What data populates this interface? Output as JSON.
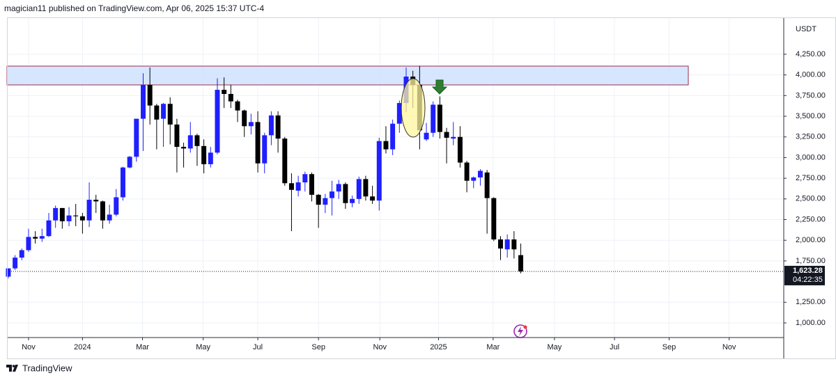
{
  "header": "magician11 published on TradingView.com, Apr 06, 2025 15:37 UTC-4",
  "footer": "TradingView",
  "chart_data": {
    "type": "candlestick",
    "unit": "USDT",
    "up_color": "#1f1fff",
    "down_color": "#000000",
    "grid": true,
    "x": [
      0,
      1,
      2,
      3,
      4,
      5,
      6,
      7,
      8,
      9,
      10,
      11,
      12,
      13,
      14,
      15,
      16,
      17,
      18,
      19,
      20,
      21,
      22,
      23,
      24,
      25,
      26,
      27,
      28,
      29,
      30,
      31,
      32,
      33,
      34,
      35,
      36,
      37,
      38,
      39,
      40,
      41,
      42,
      43,
      44,
      45,
      46,
      47,
      48,
      49,
      50,
      51,
      52,
      53,
      54,
      55,
      56,
      57,
      58,
      59,
      60,
      61,
      62,
      63,
      64,
      65,
      66,
      67,
      68,
      69,
      70,
      71,
      72,
      73,
      74,
      75,
      76
    ],
    "open": [
      1560,
      1660,
      1790,
      1880,
      2040,
      2020,
      2050,
      2240,
      2390,
      2230,
      2300,
      2290,
      2240,
      2490,
      2470,
      2240,
      2310,
      2520,
      2880,
      3010,
      3470,
      3880,
      3630,
      3470,
      3650,
      3400,
      3130,
      3110,
      3270,
      3140,
      2920,
      3060,
      3820,
      3770,
      3680,
      3570,
      3380,
      3430,
      2930,
      3270,
      3510,
      3230,
      2690,
      2600,
      2700,
      2800,
      2550,
      2430,
      2510,
      2590,
      2680,
      2450,
      2500,
      2740,
      2530,
      2480,
      3200,
      3100,
      3410,
      3660,
      3980,
      3880,
      3220,
      3300,
      3640,
      3310,
      3230,
      3250,
      2940,
      2720,
      2760,
      2820,
      2510,
      2010,
      1890,
      2010,
      1820
    ],
    "high": [
      1660,
      1820,
      1900,
      2140,
      2110,
      2140,
      2330,
      2420,
      2390,
      2400,
      2440,
      2330,
      2700,
      2550,
      2480,
      2430,
      2620,
      2890,
      3020,
      3470,
      4020,
      4090,
      3650,
      3660,
      3730,
      3470,
      3180,
      3430,
      3290,
      3220,
      3130,
      3960,
      3970,
      3880,
      3700,
      3580,
      3530,
      3560,
      3300,
      3560,
      3560,
      3250,
      2810,
      2780,
      2830,
      2820,
      2560,
      2560,
      2720,
      2730,
      2700,
      2540,
      2770,
      2780,
      2660,
      3240,
      3380,
      3460,
      3690,
      4090,
      4050,
      4110,
      3420,
      3680,
      3740,
      3360,
      3430,
      3380,
      2960,
      2770,
      2860,
      2850,
      2520,
      2050,
      2070,
      2110,
      1960
    ],
    "low": [
      1540,
      1640,
      1760,
      1860,
      1960,
      1980,
      2040,
      2150,
      2140,
      2170,
      2170,
      2080,
      2160,
      2330,
      2140,
      2200,
      2290,
      2480,
      2870,
      2950,
      3080,
      3400,
      3100,
      3130,
      3160,
      2820,
      2880,
      3060,
      2900,
      2810,
      2880,
      3040,
      3600,
      3600,
      3430,
      3250,
      3280,
      2820,
      2810,
      3150,
      3060,
      2660,
      2110,
      2530,
      2590,
      2470,
      2150,
      2330,
      2300,
      2500,
      2380,
      2400,
      2440,
      2480,
      2440,
      2360,
      3050,
      3030,
      3300,
      3550,
      3600,
      3100,
      3200,
      3250,
      3230,
      2930,
      3150,
      2880,
      2580,
      2630,
      2660,
      2080,
      1990,
      1760,
      1790,
      1780,
      1600
    ],
    "close": [
      1660,
      1790,
      1880,
      2040,
      2020,
      2050,
      2240,
      2390,
      2230,
      2300,
      2290,
      2240,
      2490,
      2470,
      2240,
      2310,
      2520,
      2880,
      3010,
      3470,
      3880,
      3630,
      3460,
      3650,
      3400,
      3130,
      3110,
      3270,
      3140,
      2920,
      3060,
      3820,
      3770,
      3680,
      3570,
      3380,
      3430,
      2930,
      3270,
      3510,
      3230,
      2690,
      2610,
      2700,
      2800,
      2550,
      2430,
      2510,
      2590,
      2680,
      2450,
      2500,
      2740,
      2530,
      2480,
      3200,
      3100,
      3410,
      3660,
      3980,
      3880,
      3330,
      3300,
      3640,
      3310,
      3240,
      3250,
      2940,
      2720,
      2760,
      2840,
      2510,
      2010,
      1900,
      2010,
      1890,
      1623.28
    ],
    "xlim": [
      -0.2,
      115
    ],
    "xticks": [
      {
        "value": 3,
        "label": "Nov"
      },
      {
        "value": 11,
        "label": "2024"
      },
      {
        "value": 19.9,
        "label": "Mar"
      },
      {
        "value": 28.9,
        "label": "May"
      },
      {
        "value": 37,
        "label": "Jul"
      },
      {
        "value": 46,
        "label": "Sep"
      },
      {
        "value": 55.1,
        "label": "Nov"
      },
      {
        "value": 63.8,
        "label": "2025"
      },
      {
        "value": 71.9,
        "label": "Mar"
      },
      {
        "value": 81,
        "label": "May"
      },
      {
        "value": 89.9,
        "label": "Jul"
      },
      {
        "value": 98,
        "label": "Sep"
      },
      {
        "value": 106.9,
        "label": "Nov"
      }
    ],
    "ylim": [
      823,
      4696
    ],
    "yticks": [
      {
        "value": 1000,
        "label": "1,000.00"
      },
      {
        "value": 1250,
        "label": "1,250.00"
      },
      {
        "value": 1750,
        "label": "1,750.00"
      },
      {
        "value": 2000,
        "label": "2,000.00"
      },
      {
        "value": 2250,
        "label": "2,250.00"
      },
      {
        "value": 2500,
        "label": "2,500.00"
      },
      {
        "value": 2750,
        "label": "2,750.00"
      },
      {
        "value": 3000,
        "label": "3,000.00"
      },
      {
        "value": 3250,
        "label": "3,250.00"
      },
      {
        "value": 3500,
        "label": "3,500.00"
      },
      {
        "value": 3750,
        "label": "3,750.00"
      },
      {
        "value": 4000,
        "label": "4,000.00"
      },
      {
        "value": 4250,
        "label": "4,250.00"
      }
    ],
    "last_price": {
      "value": 1623.28,
      "label": "1,623.28"
    },
    "countdown": "04:22:35"
  }
}
